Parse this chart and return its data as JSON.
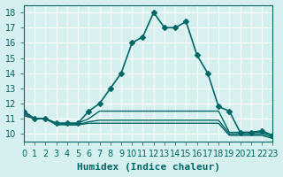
{
  "xlabel": "Humidex (Indice chaleur)",
  "ylabel": "",
  "background_color": "#d6f0ef",
  "line_color": "#006666",
  "xlim": [
    0,
    23
  ],
  "ylim": [
    9.5,
    18.5
  ],
  "xticks": [
    0,
    1,
    2,
    3,
    4,
    5,
    6,
    7,
    8,
    9,
    10,
    11,
    12,
    13,
    14,
    15,
    16,
    17,
    18,
    19,
    20,
    21,
    22,
    23
  ],
  "yticks": [
    10,
    11,
    12,
    13,
    14,
    15,
    16,
    17,
    18
  ],
  "lines": [
    {
      "x": [
        0,
        1,
        2,
        3,
        4,
        5,
        6,
        7,
        8,
        9,
        10,
        11,
        12,
        13,
        14,
        15,
        16,
        17,
        18,
        19,
        20,
        21,
        22,
        23
      ],
      "y": [
        11.5,
        11.0,
        11.0,
        10.7,
        10.7,
        10.7,
        11.5,
        12.0,
        13.0,
        14.0,
        16.0,
        16.4,
        18.0,
        17.0,
        17.0,
        17.4,
        15.2,
        14.0,
        11.8,
        11.5,
        10.1,
        10.1,
        10.2,
        9.9
      ],
      "marker": "D",
      "markersize": 3,
      "linewidth": 1.2
    },
    {
      "x": [
        0,
        1,
        2,
        3,
        4,
        5,
        6,
        7,
        8,
        9,
        10,
        11,
        12,
        13,
        14,
        15,
        16,
        17,
        18,
        19,
        20,
        21,
        22,
        23
      ],
      "y": [
        11.4,
        11.0,
        11.0,
        10.7,
        10.7,
        10.7,
        11.0,
        11.5,
        11.5,
        11.5,
        11.5,
        11.5,
        11.5,
        11.5,
        11.5,
        11.5,
        11.5,
        11.5,
        11.5,
        10.1,
        10.1,
        10.1,
        10.1,
        9.9
      ],
      "marker": null,
      "markersize": 0,
      "linewidth": 1.0
    },
    {
      "x": [
        0,
        1,
        2,
        3,
        4,
        5,
        6,
        7,
        8,
        9,
        10,
        11,
        12,
        13,
        14,
        15,
        16,
        17,
        18,
        19,
        20,
        21,
        22,
        23
      ],
      "y": [
        11.3,
        11.0,
        11.0,
        10.7,
        10.6,
        10.6,
        10.8,
        10.9,
        10.9,
        10.9,
        10.9,
        10.9,
        10.9,
        10.9,
        10.9,
        10.9,
        10.9,
        10.9,
        10.9,
        10.0,
        10.0,
        10.0,
        10.0,
        9.8
      ],
      "marker": null,
      "markersize": 0,
      "linewidth": 1.0
    },
    {
      "x": [
        0,
        1,
        2,
        3,
        4,
        5,
        6,
        7,
        8,
        9,
        10,
        11,
        12,
        13,
        14,
        15,
        16,
        17,
        18,
        19,
        20,
        21,
        22,
        23
      ],
      "y": [
        11.2,
        11.0,
        11.0,
        10.6,
        10.6,
        10.6,
        10.7,
        10.7,
        10.7,
        10.7,
        10.7,
        10.7,
        10.7,
        10.7,
        10.7,
        10.7,
        10.7,
        10.7,
        10.7,
        9.9,
        9.9,
        9.9,
        9.9,
        9.7
      ],
      "marker": null,
      "markersize": 0,
      "linewidth": 1.0
    }
  ],
  "grid_color": "#ffffff",
  "tick_color": "#006666",
  "text_color": "#006666",
  "font_size": 7
}
